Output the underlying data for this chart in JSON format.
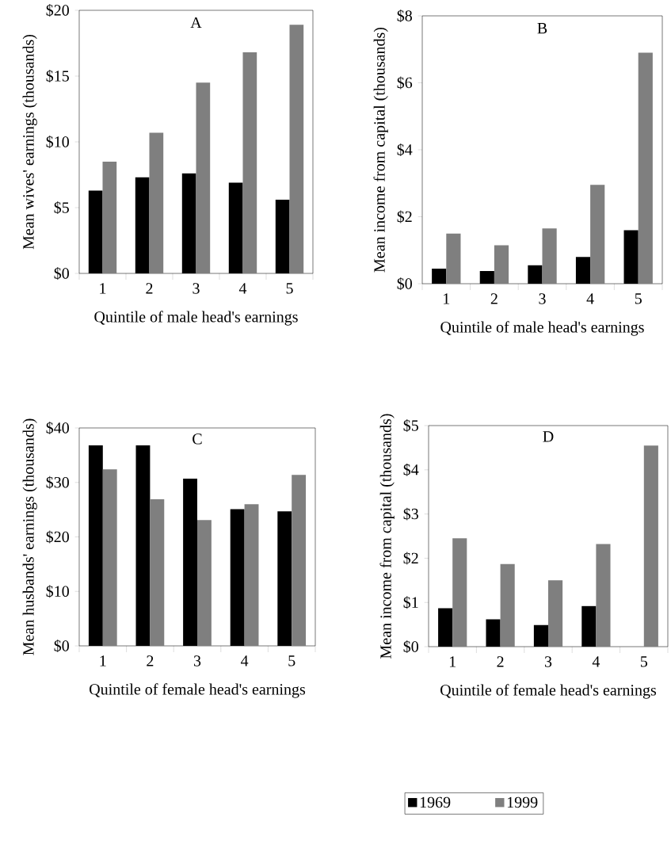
{
  "chart_data": [
    {
      "type": "bar",
      "title": "A",
      "xlabel": "Quintile of male head's earnings",
      "ylabel": "Mean wives' earnings (thousands)",
      "categories": [
        "1",
        "2",
        "3",
        "4",
        "5"
      ],
      "series": [
        {
          "color": "#000000",
          "values": [
            6.3,
            7.3,
            7.6,
            6.9,
            5.6
          ]
        },
        {
          "color": "#7f7f7f",
          "values": [
            8.5,
            10.7,
            14.5,
            16.8,
            18.9
          ]
        }
      ],
      "ylim": [
        0,
        20
      ],
      "yticks": [
        {
          "value": 0,
          "label": "$0"
        },
        {
          "value": 5,
          "label": "$5"
        },
        {
          "value": 10,
          "label": "$10"
        },
        {
          "value": 15,
          "label": "$15"
        },
        {
          "value": 20,
          "label": "$20"
        }
      ]
    },
    {
      "type": "bar",
      "title": "B",
      "xlabel": "Quintile of male head's earnings",
      "ylabel": "Mean income from capital (thousands)",
      "categories": [
        "1",
        "2",
        "3",
        "4",
        "5"
      ],
      "series": [
        {
          "color": "#000000",
          "values": [
            0.45,
            0.38,
            0.55,
            0.8,
            1.6
          ]
        },
        {
          "color": "#7f7f7f",
          "values": [
            1.5,
            1.15,
            1.65,
            2.95,
            6.9
          ]
        }
      ],
      "ylim": [
        0,
        8
      ],
      "yticks": [
        {
          "value": 0,
          "label": "$0"
        },
        {
          "value": 2,
          "label": "$2"
        },
        {
          "value": 4,
          "label": "$4"
        },
        {
          "value": 6,
          "label": "$6"
        },
        {
          "value": 8,
          "label": "$8"
        }
      ]
    },
    {
      "type": "bar",
      "title": "C",
      "xlabel": "Quintile of female head's earnings",
      "ylabel": "Mean husbands' earnings (thousands)",
      "categories": [
        "1",
        "2",
        "3",
        "4",
        "5"
      ],
      "series": [
        {
          "color": "#000000",
          "values": [
            36.8,
            36.8,
            30.7,
            25.1,
            24.7
          ]
        },
        {
          "color": "#7f7f7f",
          "values": [
            32.4,
            26.9,
            23.1,
            26.0,
            31.4
          ]
        }
      ],
      "ylim": [
        0,
        40
      ],
      "yticks": [
        {
          "value": 0,
          "label": "$0"
        },
        {
          "value": 10,
          "label": "$10"
        },
        {
          "value": 20,
          "label": "$20"
        },
        {
          "value": 30,
          "label": "$30"
        },
        {
          "value": 40,
          "label": "$40"
        }
      ]
    },
    {
      "type": "bar",
      "title": "D",
      "xlabel": "Quintile of female head's earnings",
      "ylabel": "Mean income from capital (thousands)",
      "categories": [
        "1",
        "2",
        "3",
        "4",
        "5"
      ],
      "series": [
        {
          "name": "1969",
          "color": "#000000",
          "values": [
            0.87,
            0.62,
            0.49,
            0.92,
            null
          ]
        },
        {
          "name": "1999",
          "color": "#7f7f7f",
          "values": [
            2.45,
            1.87,
            1.5,
            2.32,
            4.55
          ]
        }
      ],
      "ylim": [
        0,
        5
      ],
      "yticks": [
        {
          "value": 0,
          "label": "$0"
        },
        {
          "value": 1,
          "label": "$1"
        },
        {
          "value": 2,
          "label": "$2"
        },
        {
          "value": 3,
          "label": "$3"
        },
        {
          "value": 4,
          "label": "$4"
        },
        {
          "value": 5,
          "label": "$5"
        }
      ],
      "legend": "bottom"
    }
  ]
}
